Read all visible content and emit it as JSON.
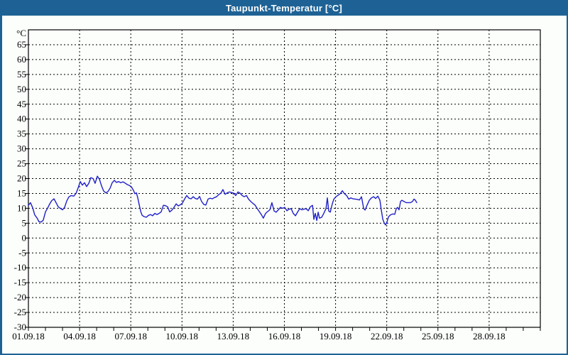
{
  "window": {
    "title": "Taupunkt-Temperatur [°C]",
    "titlebar_color": "#1e6295",
    "border_color": "#1e6295",
    "background_color": "#fbfefb"
  },
  "chart_data": {
    "type": "line",
    "title": "Taupunkt-Temperatur [°C]",
    "grid": "dashed",
    "legend": "none",
    "line_color": "#2020c8",
    "frame_color": "#000000",
    "y_axis": {
      "unit": "°C",
      "range": [
        -30,
        70
      ],
      "gridline_step": 5,
      "tick_labels": [
        "65",
        "60",
        "55",
        "50",
        "45",
        "40",
        "35",
        "30",
        "25",
        "20",
        "15",
        "10",
        "5",
        "0",
        "-5",
        "-10",
        "-15",
        "-20",
        "-25",
        "-30"
      ]
    },
    "x_axis": {
      "range_days": [
        0,
        30
      ],
      "tick_every_days": 1,
      "gridline_every_days": 3,
      "label_days": [
        0,
        3,
        6,
        9,
        12,
        15,
        18,
        21,
        24,
        27
      ],
      "label_dates": [
        "01.09.18",
        "04.09.18",
        "07.09.18",
        "10.09.18",
        "13.09.18",
        "16.09.18",
        "19.09.18",
        "22.09.18",
        "25.09.18",
        "28.09.18"
      ]
    },
    "series": [
      {
        "name": "Taupunkt-Temperatur",
        "points": [
          [
            0,
            11
          ],
          [
            0.12,
            11.9
          ],
          [
            0.25,
            10.2
          ],
          [
            0.37,
            7.8
          ],
          [
            0.5,
            6.8
          ],
          [
            0.62,
            5.5
          ],
          [
            0.75,
            5.4
          ],
          [
            0.87,
            6
          ],
          [
            1,
            8.8
          ],
          [
            1.12,
            10
          ],
          [
            1.25,
            11.5
          ],
          [
            1.37,
            12.6
          ],
          [
            1.5,
            13.2
          ],
          [
            1.62,
            11.9
          ],
          [
            1.75,
            10.5
          ],
          [
            1.87,
            10
          ],
          [
            2,
            9.5
          ],
          [
            2.12,
            10.3
          ],
          [
            2.25,
            12.5
          ],
          [
            2.37,
            13.8
          ],
          [
            2.5,
            14.3
          ],
          [
            2.66,
            14.1
          ],
          [
            2.79,
            15
          ],
          [
            2.91,
            16.8
          ],
          [
            3.04,
            19
          ],
          [
            3.16,
            17.8
          ],
          [
            3.29,
            18.6
          ],
          [
            3.41,
            17.3
          ],
          [
            3.54,
            18.4
          ],
          [
            3.66,
            20.3
          ],
          [
            3.79,
            20
          ],
          [
            3.91,
            18.4
          ],
          [
            4.04,
            20.8
          ],
          [
            4.16,
            19.8
          ],
          [
            4.29,
            17.5
          ],
          [
            4.41,
            15.8
          ],
          [
            4.54,
            15.2
          ],
          [
            4.66,
            15.6
          ],
          [
            4.79,
            16.8
          ],
          [
            4.91,
            18.6
          ],
          [
            5.04,
            19.4
          ],
          [
            5.16,
            18.7
          ],
          [
            5.29,
            19
          ],
          [
            5.41,
            18.6
          ],
          [
            5.54,
            18.9
          ],
          [
            5.66,
            18.5
          ],
          [
            5.79,
            18
          ],
          [
            5.91,
            17.7
          ],
          [
            6.04,
            17.2
          ],
          [
            6.16,
            16
          ],
          [
            6.24,
            14.9
          ],
          [
            6.33,
            15.2
          ],
          [
            6.41,
            13.5
          ],
          [
            6.49,
            11.3
          ],
          [
            6.58,
            9
          ],
          [
            6.66,
            7.7
          ],
          [
            6.78,
            7.2
          ],
          [
            6.91,
            7
          ],
          [
            7.03,
            7.6
          ],
          [
            7.16,
            7.9
          ],
          [
            7.28,
            7.5
          ],
          [
            7.41,
            8.3
          ],
          [
            7.53,
            7.9
          ],
          [
            7.66,
            8.3
          ],
          [
            7.78,
            8.8
          ],
          [
            7.91,
            11
          ],
          [
            8.03,
            10.9
          ],
          [
            8.16,
            10.5
          ],
          [
            8.28,
            8.8
          ],
          [
            8.41,
            9.4
          ],
          [
            8.53,
            10.3
          ],
          [
            8.66,
            11.5
          ],
          [
            8.78,
            10.8
          ],
          [
            8.91,
            11.2
          ],
          [
            9.03,
            11.8
          ],
          [
            9.16,
            13.2
          ],
          [
            9.28,
            14.3
          ],
          [
            9.41,
            13.4
          ],
          [
            9.53,
            13.2
          ],
          [
            9.66,
            13.9
          ],
          [
            9.78,
            13.3
          ],
          [
            9.91,
            13.1
          ],
          [
            10.03,
            14
          ],
          [
            10.15,
            12.3
          ],
          [
            10.28,
            11.3
          ],
          [
            10.4,
            11.1
          ],
          [
            10.53,
            13.1
          ],
          [
            10.65,
            13.4
          ],
          [
            10.78,
            13.2
          ],
          [
            10.9,
            13.6
          ],
          [
            11.03,
            13.9
          ],
          [
            11.15,
            14.6
          ],
          [
            11.28,
            15.1
          ],
          [
            11.4,
            16.3
          ],
          [
            11.53,
            14.7
          ],
          [
            11.65,
            15.2
          ],
          [
            11.78,
            15.5
          ],
          [
            11.9,
            15.3
          ],
          [
            12.03,
            15.1
          ],
          [
            12.15,
            14.3
          ],
          [
            12.28,
            15.5
          ],
          [
            12.4,
            15.1
          ],
          [
            12.53,
            14.3
          ],
          [
            12.65,
            13.9
          ],
          [
            12.78,
            14.3
          ],
          [
            12.9,
            13.1
          ],
          [
            13.03,
            12.3
          ],
          [
            13.15,
            11.7
          ],
          [
            13.28,
            11.1
          ],
          [
            13.4,
            10
          ],
          [
            13.53,
            8.9
          ],
          [
            13.65,
            7.9
          ],
          [
            13.77,
            6.7
          ],
          [
            13.9,
            8.3
          ],
          [
            14.02,
            8.9
          ],
          [
            14.15,
            9.5
          ],
          [
            14.27,
            11.9
          ],
          [
            14.4,
            9.1
          ],
          [
            14.52,
            8.7
          ],
          [
            14.65,
            9.5
          ],
          [
            14.77,
            10.3
          ],
          [
            14.9,
            10
          ],
          [
            15.02,
            10.3
          ],
          [
            15.15,
            9.2
          ],
          [
            15.27,
            9.7
          ],
          [
            15.4,
            9.9
          ],
          [
            15.52,
            8.3
          ],
          [
            15.65,
            7.5
          ],
          [
            15.77,
            8.7
          ],
          [
            15.9,
            9.9
          ],
          [
            16.02,
            9.5
          ],
          [
            16.15,
            9.7
          ],
          [
            16.27,
            9.9
          ],
          [
            16.4,
            9.2
          ],
          [
            16.52,
            10.5
          ],
          [
            16.65,
            11
          ],
          [
            16.73,
            6.3
          ],
          [
            16.81,
            8.3
          ],
          [
            16.9,
            5.9
          ],
          [
            16.98,
            8.7
          ],
          [
            17.06,
            6.7
          ],
          [
            17.19,
            7
          ],
          [
            17.31,
            8.3
          ],
          [
            17.44,
            9.9
          ],
          [
            17.52,
            13.5
          ],
          [
            17.6,
            9.1
          ],
          [
            17.69,
            8.7
          ],
          [
            17.81,
            11.5
          ],
          [
            17.9,
            13.1
          ],
          [
            18.02,
            13.9
          ],
          [
            18.15,
            14.4
          ],
          [
            18.27,
            14.9
          ],
          [
            18.4,
            15.9
          ],
          [
            18.52,
            14.9
          ],
          [
            18.65,
            14.3
          ],
          [
            18.77,
            13.1
          ],
          [
            18.9,
            13.5
          ],
          [
            19.02,
            13.2
          ],
          [
            19.15,
            13.1
          ],
          [
            19.27,
            13
          ],
          [
            19.4,
            12.8
          ],
          [
            19.52,
            13.9
          ],
          [
            19.65,
            9.9
          ],
          [
            19.73,
            9.4
          ],
          [
            19.85,
            11.1
          ],
          [
            19.98,
            12.7
          ],
          [
            20.1,
            13.5
          ],
          [
            20.23,
            13.9
          ],
          [
            20.35,
            13.3
          ],
          [
            20.48,
            14.1
          ],
          [
            20.6,
            12.7
          ],
          [
            20.68,
            9.5
          ],
          [
            20.77,
            6.3
          ],
          [
            20.85,
            5.1
          ],
          [
            20.93,
            4.4
          ],
          [
            21.02,
            5.5
          ],
          [
            21.1,
            7.1
          ],
          [
            21.22,
            7.8
          ],
          [
            21.35,
            8.1
          ],
          [
            21.47,
            8
          ],
          [
            21.56,
            9.9
          ],
          [
            21.64,
            10.3
          ],
          [
            21.72,
            9.5
          ],
          [
            21.81,
            12.3
          ],
          [
            21.89,
            12.7
          ],
          [
            22.01,
            12.3
          ],
          [
            22.14,
            11.9
          ],
          [
            22.26,
            11.9
          ],
          [
            22.39,
            11.9
          ],
          [
            22.51,
            12.3
          ],
          [
            22.6,
            13.1
          ],
          [
            22.68,
            12.7
          ],
          [
            22.76,
            11.9
          ]
        ]
      }
    ]
  }
}
